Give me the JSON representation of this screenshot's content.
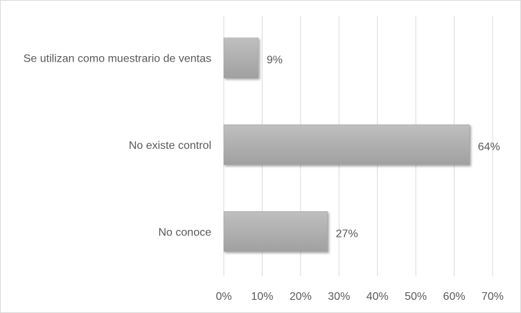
{
  "chart_data": {
    "type": "bar",
    "orientation": "horizontal",
    "categories": [
      "Se utilizan como muestrario de ventas",
      "No existe control",
      "No conoce"
    ],
    "values": [
      9,
      64,
      27
    ],
    "data_labels": [
      "9%",
      "64%",
      "27%"
    ],
    "xlim": [
      0,
      70
    ],
    "x_ticks": [
      0,
      10,
      20,
      30,
      40,
      50,
      60,
      70
    ],
    "x_tick_labels": [
      "0%",
      "10%",
      "20%",
      "30%",
      "40%",
      "50%",
      "60%",
      "70%"
    ],
    "title": "",
    "xlabel": "",
    "ylabel": "",
    "grid": "vertical",
    "legend": "none",
    "bar_color": "#a6a6a6",
    "grid_color": "#d9d9d9",
    "text_color": "#595959"
  }
}
